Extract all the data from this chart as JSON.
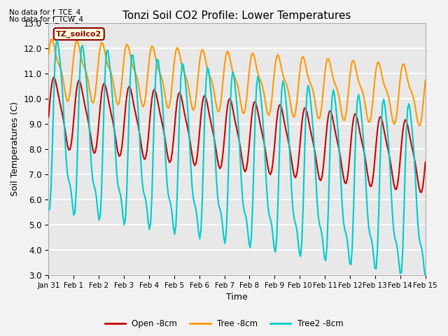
{
  "title": "Tonzi Soil CO2 Profile: Lower Temperatures",
  "xlabel": "Time",
  "ylabel": "Soil Temperatures (C)",
  "ylim": [
    3.0,
    13.0
  ],
  "yticks": [
    3.0,
    4.0,
    5.0,
    6.0,
    7.0,
    8.0,
    9.0,
    10.0,
    11.0,
    12.0,
    13.0
  ],
  "xtick_labels": [
    "Jan 31",
    "Feb 1",
    "Feb 2",
    "Feb 3",
    "Feb 4",
    "Feb 5",
    "Feb 6",
    "Feb 7",
    "Feb 8",
    "Feb 9",
    "Feb 10",
    "Feb 11",
    "Feb 12",
    "Feb 13",
    "Feb 14",
    "Feb 15"
  ],
  "annotations": [
    "No data for f_TCE_4",
    "No data for f_TCW_4"
  ],
  "legend_label": "TZ_soilco2",
  "series": {
    "open": {
      "label": "Open -8cm",
      "color": "#cc0000",
      "linewidth": 1.5
    },
    "tree": {
      "label": "Tree -8cm",
      "color": "#ff9900",
      "linewidth": 1.5
    },
    "tree2": {
      "label": "Tree2 -8cm",
      "color": "#00cccc",
      "linewidth": 1.5
    }
  },
  "bg_color": "#e8e8e8",
  "grid_color": "#ffffff",
  "title_fontsize": 11,
  "label_fontsize": 9,
  "tick_fontsize": 8.5
}
